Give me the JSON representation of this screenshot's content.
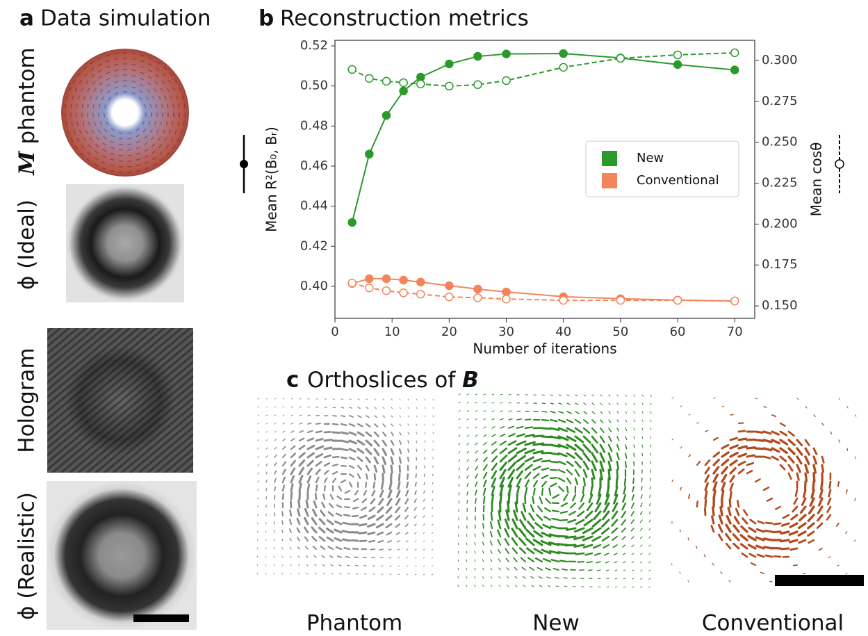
{
  "panel_a": {
    "letter": "a",
    "title": "Data simulation",
    "labels": [
      "M",
      "phantom",
      "ϕ (Ideal)",
      "Hologram",
      "ϕ (Realistic)"
    ]
  },
  "panel_b": {
    "letter": "b",
    "title": "Reconstruction metrics"
  },
  "panel_c": {
    "letter": "c",
    "title": "Orthoslices of",
    "title_bold": "B",
    "labels": [
      "Phantom",
      "New",
      "Conventional"
    ]
  },
  "chart_data": {
    "type": "line",
    "x_label": "Number of iterations",
    "y_label": "Mean R²(B₀, Bᵣ)",
    "y2_label": "Mean cosθ",
    "x": [
      3,
      6,
      9,
      12,
      15,
      20,
      25,
      30,
      40,
      50,
      60,
      70
    ],
    "xlim": [
      0,
      73.5
    ],
    "xticks": [
      0,
      10,
      20,
      30,
      40,
      50,
      60,
      70
    ],
    "ylim": [
      0.384,
      0.5228
    ],
    "yticks": [
      {
        "value": 0.4,
        "label": "0.40"
      },
      0.42,
      0.44,
      0.46,
      0.48,
      {
        "value": 0.5,
        "label": "0.50"
      },
      0.52
    ],
    "y2lim": [
      0.1424,
      0.3123
    ],
    "y2ticks": [
      {
        "value": 0.15,
        "label": "0.150"
      },
      0.175,
      {
        "value": 0.2,
        "label": "0.200"
      },
      0.225,
      {
        "value": 0.25,
        "label": "0.250"
      },
      0.275,
      {
        "value": 0.3,
        "label": "0.300"
      }
    ],
    "legend": "center right",
    "series": [
      {
        "name": "New",
        "color": "#2a9a2a",
        "style": "solid",
        "values": [
          0.4319,
          0.466,
          0.4853,
          0.4975,
          0.5044,
          0.511,
          0.5148,
          0.516,
          0.5162,
          0.514,
          0.5107,
          0.508
        ]
      },
      {
        "name": "Conventional",
        "color": "#f4845a",
        "style": "solid",
        "values": [
          0.4014,
          0.4038,
          0.4038,
          0.4031,
          0.4021,
          0.4003,
          0.3986,
          0.3972,
          0.3948,
          0.3938,
          0.3931,
          0.3927
        ]
      },
      {
        "color": "#2a9a2a",
        "style": "dashed",
        "axis": "y2",
        "values": [
          0.2945,
          0.289,
          0.2873,
          0.2864,
          0.2856,
          0.2843,
          0.2852,
          0.2877,
          0.2958,
          0.3013,
          0.3034,
          0.3047
        ]
      },
      {
        "color": "#f4845a",
        "style": "dashed",
        "axis": "y2",
        "values": [
          0.164,
          0.161,
          0.1593,
          0.158,
          0.1572,
          0.1555,
          0.155,
          0.1542,
          0.1534,
          0.1534,
          0.1534,
          0.153
        ]
      }
    ]
  }
}
